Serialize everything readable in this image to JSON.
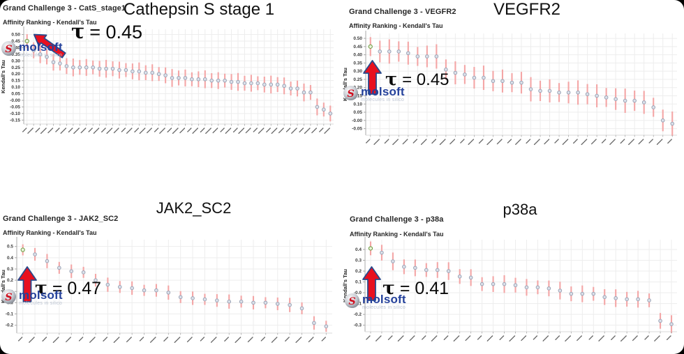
{
  "page": {
    "background": "#000000",
    "slide_background": "#ffffff"
  },
  "logo": {
    "name": "molsoft",
    "tagline": "molecules in silico",
    "icon_letter": "S",
    "wordmark_color": "#24419b",
    "tagline_color": "#bcc4d2",
    "icon_red": "#cf1020"
  },
  "colors": {
    "error_bar": "#f4a6a6",
    "point_fill": "#dde1ea",
    "point_stroke": "#9aa3b5",
    "highlight_fill": "#e9f2dc",
    "highlight_stroke": "#6a9a3e",
    "arrow_fill": "#e8101f",
    "arrow_outline": "#2a4a8b",
    "grid_line": "#ededed",
    "axis_line": "#a8a8a8",
    "tick_label": "#3a3a3a",
    "x_label_mark": "#6a6a6a"
  },
  "charts": [
    {
      "title": "Grand Challenge 3 - CatS_stage1",
      "subtitle": "Affinity Ranking - Kendall's Tau",
      "big_title": "Cathepsin S stage 1",
      "tau_symbol": "τ",
      "tau_text": "= 0.45",
      "arrow_direction": "down-left"
    },
    {
      "title": "Grand Challenge 3 - VEGFR2",
      "subtitle": "Affinity Ranking - Kendall's Tau",
      "big_title": "VEGFR2",
      "tau_symbol": "τ",
      "tau_text": "= 0.45",
      "arrow_direction": "up"
    },
    {
      "title": "Grand Challenge 3 - JAK2_SC2",
      "subtitle": "Affinity Ranking - Kendall's Tau",
      "big_title": "JAK2_SC2",
      "tau_symbol": "τ",
      "tau_text": "= 0.47",
      "arrow_direction": "up"
    },
    {
      "title": "Grand Challenge 3 - p38a",
      "subtitle": "Affinity Ranking - Kendall's Tau",
      "big_title": "p38a",
      "tau_symbol": "τ",
      "tau_text": "= 0.41",
      "arrow_direction": "up"
    }
  ],
  "chart_data": [
    {
      "type": "scatter",
      "title": "Grand Challenge 3 - CatS_stage1",
      "subtitle": "Affinity Ranking - Kendall's Tau",
      "ylabel": "Kendall's Tau",
      "xlabel": "",
      "x_tick_labels": "rotated participant/submission IDs (illegible at this scale)",
      "ylim": [
        -0.18,
        0.54
      ],
      "ytick_values": [
        0.5,
        0.45,
        0.4,
        0.35,
        0.3,
        0.25,
        0.2,
        0.15,
        0.1,
        0.05,
        0.0,
        -0.05,
        -0.1,
        -0.15
      ],
      "ytick_labels": [
        "0.50",
        "0.45",
        "0.40",
        "0.35",
        "0.30",
        "0.25",
        "0.20",
        "0.15",
        "0.10",
        "0.05",
        "-0.00",
        "-0.05",
        "-0.10",
        "-0.15"
      ],
      "values": [
        0.45,
        0.38,
        0.35,
        0.33,
        0.29,
        0.28,
        0.26,
        0.25,
        0.25,
        0.25,
        0.25,
        0.24,
        0.24,
        0.24,
        0.23,
        0.23,
        0.22,
        0.22,
        0.21,
        0.21,
        0.2,
        0.19,
        0.17,
        0.17,
        0.17,
        0.16,
        0.16,
        0.16,
        0.15,
        0.15,
        0.15,
        0.14,
        0.14,
        0.13,
        0.13,
        0.13,
        0.12,
        0.12,
        0.12,
        0.11,
        0.09,
        0.09,
        0.06,
        0.06,
        -0.05,
        -0.07,
        -0.1
      ],
      "error_half": 0.062,
      "highlight_index": 0,
      "annotation": "τ = 0.45",
      "grid": true,
      "legend": false
    },
    {
      "type": "scatter",
      "title": "Grand Challenge 3 - VEGFR2",
      "subtitle": "Affinity Ranking - Kendall's Tau",
      "ylabel": "Kendall's Tau",
      "xlabel": "",
      "x_tick_labels": "rotated participant/submission IDs (illegible at this scale)",
      "ylim": [
        -0.09,
        0.53
      ],
      "ytick_values": [
        0.5,
        0.45,
        0.4,
        0.35,
        0.3,
        0.25,
        0.2,
        0.15,
        0.1,
        0.05,
        0.0,
        -0.05
      ],
      "ytick_labels": [
        "0.50",
        "0.45",
        "0.40",
        "0.35",
        "0.30",
        "0.25",
        "0.20",
        "0.15",
        "0.10",
        "0.05",
        "-0.00",
        "-0.05"
      ],
      "values": [
        0.45,
        0.42,
        0.42,
        0.42,
        0.41,
        0.39,
        0.39,
        0.39,
        0.31,
        0.29,
        0.28,
        0.26,
        0.26,
        0.24,
        0.24,
        0.23,
        0.23,
        0.19,
        0.18,
        0.18,
        0.17,
        0.17,
        0.17,
        0.16,
        0.15,
        0.14,
        0.13,
        0.12,
        0.12,
        0.11,
        0.08,
        0.0,
        -0.02
      ],
      "error_half": 0.068,
      "highlight_index": 0,
      "annotation": "τ = 0.45",
      "grid": true,
      "legend": false
    },
    {
      "type": "scatter",
      "title": "Grand Challenge 3 - JAK2_SC2",
      "subtitle": "Affinity Ranking - Kendall's Tau",
      "ylabel": "Kendall's Tau",
      "xlabel": "",
      "x_tick_labels": "rotated participant/submission IDs (illegible at this scale)",
      "ylim": [
        -0.27,
        0.56
      ],
      "ytick_values": [
        0.5,
        0.4,
        0.3,
        0.2,
        0.1,
        0.0,
        -0.1,
        -0.2
      ],
      "ytick_labels": [
        "0.5",
        "0.4",
        "0.3",
        "0.2",
        "0.1",
        "-0.0",
        "-0.1",
        "-0.2"
      ],
      "values": [
        0.47,
        0.43,
        0.37,
        0.31,
        0.28,
        0.27,
        0.2,
        0.16,
        0.14,
        0.13,
        0.11,
        0.11,
        0.09,
        0.05,
        0.04,
        0.03,
        0.02,
        0.01,
        0.01,
        0.0,
        0.0,
        -0.01,
        -0.02,
        -0.05,
        -0.18,
        -0.21
      ],
      "error_half": 0.058,
      "highlight_index": 0,
      "annotation": "τ = 0.47",
      "grid": true,
      "legend": false
    },
    {
      "type": "scatter",
      "title": "Grand Challenge 3 - p38a",
      "subtitle": "Affinity Ranking - Kendall's Tau",
      "ylabel": "Kendall's Tau",
      "xlabel": "",
      "x_tick_labels": "rotated participant/submission IDs (illegible at this scale)",
      "ylim": [
        -0.36,
        0.49
      ],
      "ytick_values": [
        0.4,
        0.3,
        0.2,
        0.1,
        0.0,
        -0.1,
        -0.2,
        -0.3
      ],
      "ytick_labels": [
        "0.4",
        "0.3",
        "0.2",
        "0.1",
        "-0.0",
        "-0.1",
        "-0.2",
        "-0.3"
      ],
      "values": [
        0.41,
        0.37,
        0.29,
        0.24,
        0.23,
        0.21,
        0.21,
        0.2,
        0.15,
        0.14,
        0.08,
        0.08,
        0.08,
        0.07,
        0.05,
        0.05,
        0.04,
        0.02,
        -0.01,
        -0.01,
        -0.01,
        -0.04,
        -0.05,
        -0.06,
        -0.06,
        -0.07,
        -0.26,
        -0.29
      ],
      "error_half": 0.075,
      "highlight_index": 0,
      "annotation": "τ = 0.41",
      "grid": true,
      "legend": false
    }
  ]
}
